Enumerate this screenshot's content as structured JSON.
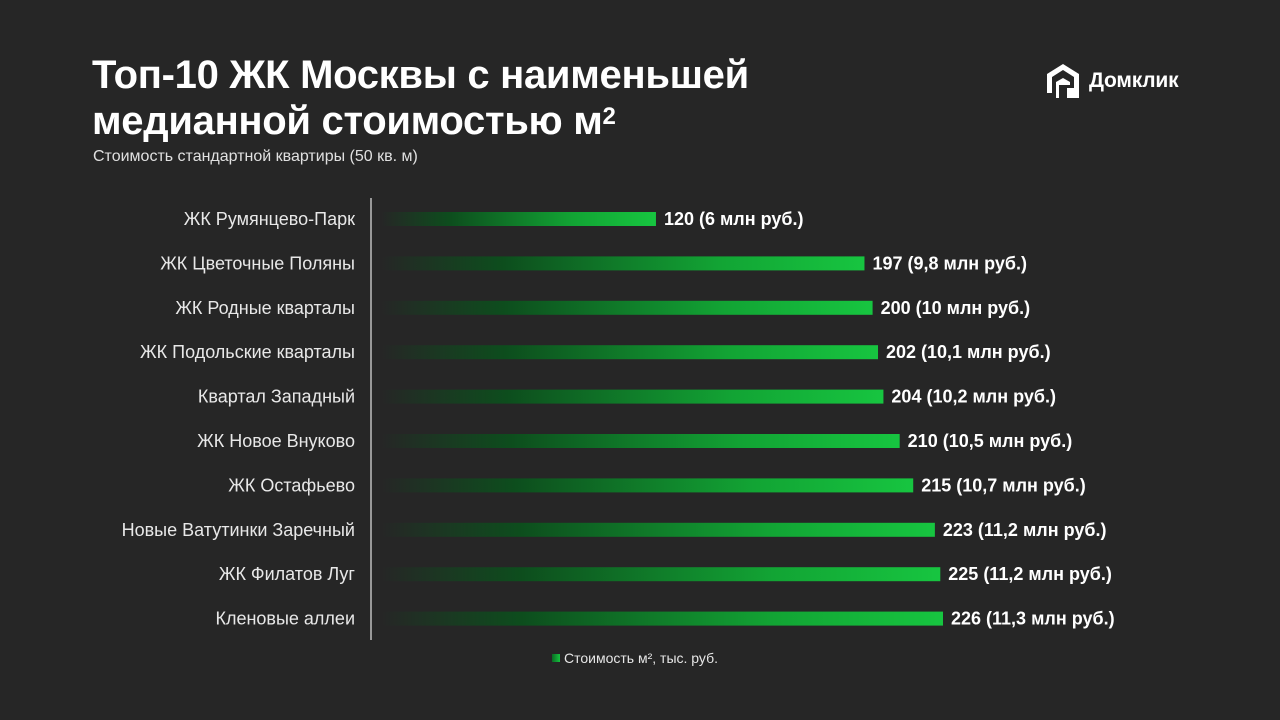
{
  "header": {
    "title_line1": "Топ-10 ЖК Москвы с наименьшей",
    "title_line2": "медианной стоимостью м",
    "title_sup": "2",
    "subtitle": "Стоимость стандартной квартиры (50 кв. м)"
  },
  "logo": {
    "text": "Домклик",
    "icon": "domclick-house-icon"
  },
  "legend": {
    "label": "Стоимость м², тыс. руб."
  },
  "colors": {
    "background": "#262626",
    "bar_start": "#262626",
    "bar_end": "#17c540",
    "text": "#ffffff"
  },
  "chart_data": {
    "type": "bar",
    "orientation": "horizontal",
    "categories": [
      "ЖК Румянцево-Парк",
      "ЖК Цветочные Поляны",
      "ЖК Родные кварталы",
      "ЖК Подольские кварталы",
      "Квартал Западный",
      "ЖК Новое Внуково",
      "ЖК Остафьево",
      "Новые Ватутинки Заречный",
      "ЖК Филатов Луг",
      "Кленовые аллеи"
    ],
    "values": [
      120,
      197,
      200,
      202,
      204,
      210,
      215,
      223,
      225,
      226
    ],
    "data_labels": [
      "120 (6 млн руб.)",
      "197 (9,8 млн руб.)",
      "200  (10 млн руб.)",
      "202 (10,1 млн руб.)",
      "204 (10,2 млн руб.)",
      "210 (10,5 млн руб.)",
      "215 (10,7 млн руб.)",
      "223 (11,2 млн руб.)",
      "225 (11,2 млн руб.)",
      "226 (11,3 млн руб.)"
    ],
    "series": [
      {
        "name": "Стоимость м², тыс. руб.",
        "values": [
          120,
          197,
          200,
          202,
          204,
          210,
          215,
          223,
          225,
          226
        ]
      }
    ],
    "xlim": [
      0,
      230
    ],
    "grid": false,
    "legend_position": "bottom-center"
  }
}
